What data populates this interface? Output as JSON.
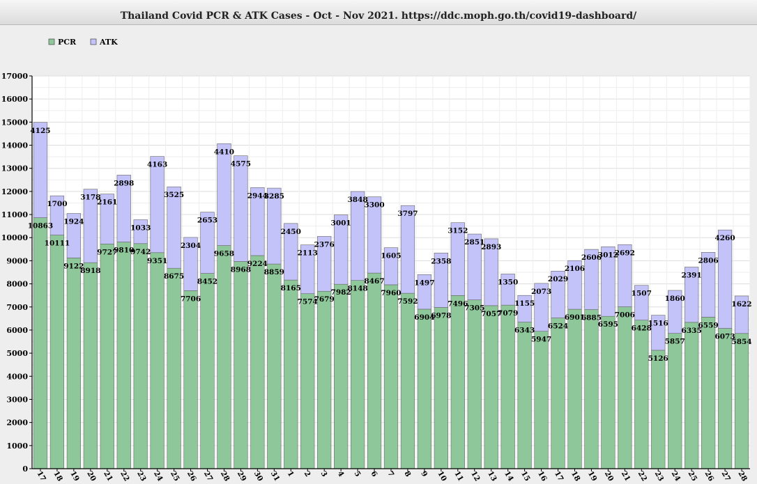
{
  "chart_data": {
    "type": "bar",
    "stacked": true,
    "title": "Thailand Covid PCR & ATK Cases - Oct - Nov 2021. https://ddc.moph.go.th/covid19-dashboard/",
    "xlabel": "",
    "ylabel": "",
    "ylim": [
      0,
      17000
    ],
    "yticks": [
      0,
      1000,
      2000,
      3000,
      4000,
      5000,
      6000,
      7000,
      8000,
      9000,
      10000,
      11000,
      12000,
      13000,
      14000,
      15000,
      16000,
      17000
    ],
    "grid": true,
    "legend_position": "top-left",
    "categories": [
      "17",
      "18",
      "19",
      "20",
      "21",
      "22",
      "23",
      "24",
      "25",
      "26",
      "27",
      "28",
      "29",
      "30",
      "31",
      "1",
      "2",
      "3",
      "4",
      "5",
      "6",
      "7",
      "8",
      "9",
      "10",
      "11",
      "12",
      "13",
      "14",
      "15",
      "16",
      "17",
      "18",
      "19",
      "20",
      "21",
      "22",
      "23",
      "24",
      "25",
      "26",
      "27",
      "28"
    ],
    "series": [
      {
        "name": "PCR",
        "color": "#8ec89a",
        "values": [
          10863,
          10111,
          9122,
          8918,
          9727,
          9810,
          9742,
          9351,
          8675,
          7706,
          8452,
          9658,
          8968,
          9224,
          8859,
          8165,
          7574,
          7679,
          7982,
          8148,
          8467,
          7960,
          7592,
          6904,
          6978,
          7496,
          7305,
          7057,
          7079,
          6343,
          5947,
          6524,
          6901,
          6885,
          6595,
          7006,
          6428,
          5126,
          5857,
          6335,
          6559,
          6073,
          5854
        ]
      },
      {
        "name": "ATK",
        "color": "#c3c3fa",
        "values": [
          4125,
          1700,
          1924,
          3178,
          2161,
          2898,
          1033,
          4163,
          3525,
          2304,
          2653,
          4410,
          4575,
          2944,
          3285,
          2450,
          2113,
          2376,
          3001,
          3848,
          3300,
          1605,
          3797,
          1497,
          2358,
          3152,
          2851,
          2893,
          1350,
          1155,
          2073,
          2029,
          2106,
          2606,
          3012,
          2692,
          1507,
          1516,
          1860,
          2391,
          2806,
          4260,
          1622
        ]
      }
    ]
  }
}
